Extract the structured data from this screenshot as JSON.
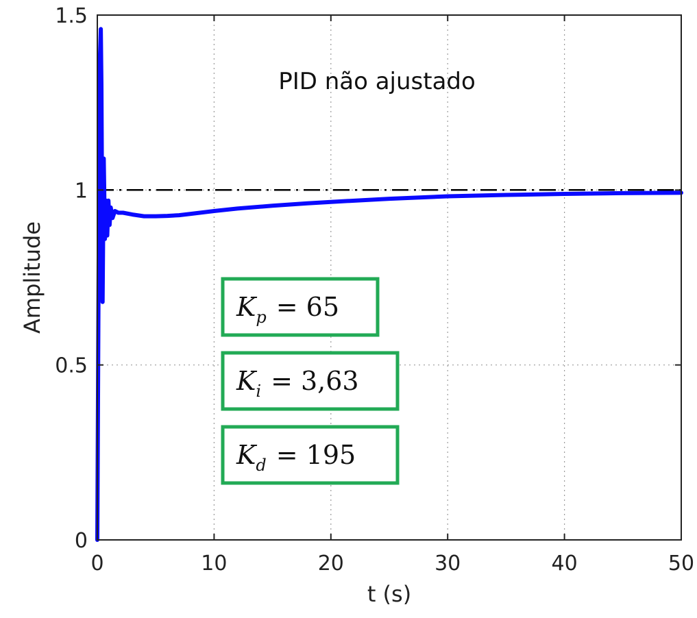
{
  "chart_data": {
    "type": "line",
    "title": "",
    "annotation": "PID não ajustado",
    "xlabel": "t (s)",
    "ylabel": "Amplitude",
    "xlim": [
      0,
      50
    ],
    "ylim": [
      0,
      1.5
    ],
    "xticks": [
      0,
      10,
      20,
      30,
      40,
      50
    ],
    "xtick_labels": [
      "0",
      "10",
      "20",
      "30",
      "40",
      "50"
    ],
    "yticks": [
      0,
      0.5,
      1,
      1.5
    ],
    "ytick_labels": [
      "0",
      "0.5",
      "1",
      "1.5"
    ],
    "grid": true,
    "series": [
      {
        "color": "#0a0aff",
        "style": "solid",
        "x": [
          0,
          0.1,
          0.2,
          0.3,
          0.35,
          0.45,
          0.55,
          0.65,
          0.75,
          0.85,
          0.95,
          1.05,
          1.15,
          1.3,
          1.5,
          1.8,
          2.2,
          3,
          4,
          5,
          6,
          7,
          8,
          10,
          12,
          15,
          18,
          20,
          25,
          30,
          35,
          40,
          45,
          50
        ],
        "values": [
          0,
          0.7,
          1.35,
          1.46,
          1.3,
          0.68,
          1.09,
          0.86,
          0.97,
          0.87,
          0.97,
          0.9,
          0.95,
          0.92,
          0.94,
          0.935,
          0.935,
          0.93,
          0.925,
          0.925,
          0.926,
          0.928,
          0.932,
          0.94,
          0.947,
          0.955,
          0.962,
          0.966,
          0.975,
          0.982,
          0.986,
          0.989,
          0.991,
          0.992
        ]
      },
      {
        "color": "#000000",
        "style": "dash-dot",
        "x": [
          0,
          50
        ],
        "values": [
          1,
          1
        ]
      }
    ],
    "gains": [
      {
        "symbol": "K",
        "subscript": "p",
        "value": "= 65"
      },
      {
        "symbol": "K",
        "subscript": "i",
        "value": "= 3,63"
      },
      {
        "symbol": "K",
        "subscript": "d",
        "value": "= 195"
      }
    ],
    "gain_box_color": "#22aa55"
  }
}
